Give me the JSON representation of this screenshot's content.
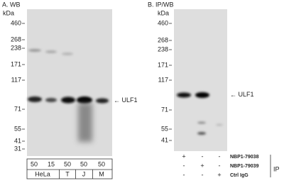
{
  "panel_a": {
    "title": "A. WB",
    "unit": "kDa",
    "markers": [
      460,
      268,
      238,
      171,
      117,
      71,
      55,
      41,
      31
    ],
    "target": "ULF1",
    "groups": [
      {
        "label": "HeLa",
        "lanes": [
          50,
          15
        ]
      },
      {
        "label": "T",
        "lanes": [
          50
        ]
      },
      {
        "label": "J",
        "lanes": [
          50
        ]
      },
      {
        "label": "M",
        "lanes": [
          50
        ]
      }
    ]
  },
  "panel_b": {
    "title": "B. IP/WB",
    "unit": "kDa",
    "markers": [
      460,
      268,
      238,
      171,
      117,
      71,
      55,
      41
    ],
    "target": "ULF1",
    "ip": {
      "label": "IP",
      "rows": [
        {
          "label": "NBP1-79038",
          "marks": [
            "+",
            "-",
            "-"
          ]
        },
        {
          "label": "NBP1-79039",
          "marks": [
            "-",
            "+",
            "-"
          ]
        },
        {
          "label": "Ctrl IgG",
          "marks": [
            "-",
            "-",
            "+"
          ]
        }
      ]
    }
  }
}
